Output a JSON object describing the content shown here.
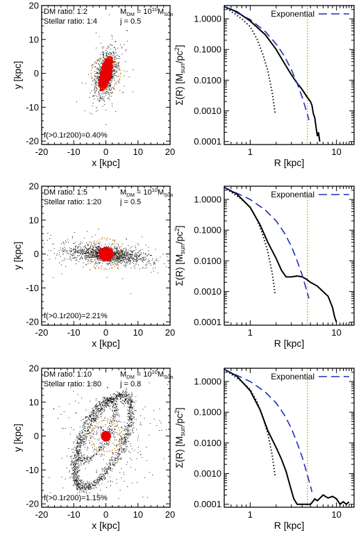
{
  "chart_data": [
    {
      "type": "scatter",
      "title": "",
      "xlabel": "x [kpc]",
      "ylabel": "y [kpc]",
      "xlim": [
        -20,
        20
      ],
      "ylim": [
        -21,
        20
      ],
      "xticks": [
        "-20",
        "-10",
        "0",
        "10",
        "20"
      ],
      "yticks": [
        "-20",
        "-10",
        "0",
        "10",
        "20"
      ],
      "annotations": {
        "dm_ratio": "DM ratio: 1:2",
        "stellar_ratio": "Stellar ratio: 1:4",
        "mass": "M_DM = 10^10 M_Sun",
        "spin": "j = 0.5",
        "fraction": "f(>0.1r200)=0.40%"
      },
      "structure": "compact-bar",
      "tilt_deg": 75,
      "core": {
        "a": 5.2,
        "b": 1.7
      },
      "circle_radius_kpc": 4.6
    },
    {
      "type": "line",
      "title": "",
      "xlabel": "R [kpc]",
      "ylabel": "Σ(R) [M_sun/pc^2]",
      "xscale": "log",
      "yscale": "log",
      "xlim": [
        0.5,
        16
      ],
      "ylim": [
        8e-05,
        2.7
      ],
      "xticks": [
        "1",
        "10"
      ],
      "yticks": [
        "1.0000",
        "0.1000",
        "0.0100",
        "0.0010",
        "0.0001"
      ],
      "legend": {
        "label": "Exponential",
        "placement": "top-right"
      },
      "vline_x": 4.6,
      "series": [
        {
          "role": "profile",
          "style": "solid",
          "color": "#000000",
          "points": [
            [
              0.5,
              2.5
            ],
            [
              0.7,
              1.7
            ],
            [
              1.0,
              0.85
            ],
            [
              1.5,
              0.3
            ],
            [
              2.0,
              0.1
            ],
            [
              2.5,
              0.035
            ],
            [
              3.0,
              0.015
            ],
            [
              3.5,
              0.008
            ],
            [
              4.0,
              0.005
            ],
            [
              4.5,
              0.003
            ],
            [
              5.0,
              0.002
            ],
            [
              5.2,
              0.0015
            ],
            [
              5.4,
              0.0008
            ],
            [
              5.6,
              0.0006
            ],
            [
              5.8,
              0.0003
            ],
            [
              6.0,
              0.00015
            ],
            [
              6.2,
              0.0002
            ],
            [
              6.4,
              0.0001
            ]
          ]
        },
        {
          "role": "exponential",
          "style": "dashed",
          "color": "#1c2fb3",
          "points": [
            [
              0.5,
              2.5
            ],
            [
              1.0,
              0.95
            ],
            [
              1.5,
              0.38
            ],
            [
              2.0,
              0.15
            ],
            [
              2.5,
              0.06
            ],
            [
              3.0,
              0.022
            ],
            [
              3.5,
              0.008
            ],
            [
              4.0,
              0.0028
            ],
            [
              4.5,
              0.00095
            ],
            [
              4.8,
              0.0005
            ]
          ]
        },
        {
          "role": "inner",
          "style": "dotted",
          "color": "#000000",
          "points": [
            [
              0.5,
              2.5
            ],
            [
              0.8,
              1.0
            ],
            [
              1.0,
              0.55
            ],
            [
              1.2,
              0.22
            ],
            [
              1.4,
              0.07
            ],
            [
              1.6,
              0.02
            ],
            [
              1.8,
              0.004
            ],
            [
              1.95,
              0.0008
            ]
          ]
        }
      ]
    },
    {
      "type": "scatter",
      "title": "",
      "xlabel": "x [kpc]",
      "ylabel": "y [kpc]",
      "xlim": [
        -20,
        20
      ],
      "ylim": [
        -21,
        20
      ],
      "xticks": [
        "-20",
        "-10",
        "0",
        "10",
        "20"
      ],
      "yticks": [
        "-20",
        "-10",
        "0",
        "10",
        "20"
      ],
      "annotations": {
        "dm_ratio": "DM ratio: 1:5",
        "stellar_ratio": "Stellar ratio: 1:20",
        "mass": "M_DM = 10^10 M_Sun",
        "spin": "j = 0.5",
        "fraction": "f(>0.1r200)=2.21%"
      },
      "structure": "elongated-bar",
      "tilt_deg": -5,
      "core": {
        "a": 2.2,
        "b": 2.0
      },
      "circle_radius_kpc": 4.6
    },
    {
      "type": "line",
      "title": "",
      "xlabel": "R [kpc]",
      "ylabel": "Σ(R) [M_sun/pc^2]",
      "xscale": "log",
      "yscale": "log",
      "xlim": [
        0.5,
        16
      ],
      "ylim": [
        8e-05,
        2.7
      ],
      "xticks": [
        "1",
        "10"
      ],
      "yticks": [
        "1.0000",
        "0.1000",
        "0.0100",
        "0.0010",
        "0.0001"
      ],
      "legend": {
        "label": "Exponential",
        "placement": "top-right"
      },
      "vline_x": 4.6,
      "series": [
        {
          "role": "profile",
          "style": "solid",
          "color": "#000000",
          "points": [
            [
              0.5,
              2.5
            ],
            [
              0.7,
              1.5
            ],
            [
              1.0,
              0.55
            ],
            [
              1.3,
              0.15
            ],
            [
              1.6,
              0.04
            ],
            [
              2.0,
              0.012
            ],
            [
              2.3,
              0.005
            ],
            [
              2.6,
              0.003
            ],
            [
              3.0,
              0.003
            ],
            [
              3.5,
              0.0032
            ],
            [
              4.0,
              0.003
            ],
            [
              4.5,
              0.0025
            ],
            [
              5.0,
              0.002
            ],
            [
              6.0,
              0.0015
            ],
            [
              7.0,
              0.001
            ],
            [
              8.0,
              0.0007
            ],
            [
              9.0,
              0.0003
            ],
            [
              9.5,
              0.00015
            ],
            [
              10.0,
              0.0001
            ]
          ]
        },
        {
          "role": "exponential",
          "style": "dashed",
          "color": "#1c2fb3",
          "points": [
            [
              0.5,
              2.5
            ],
            [
              1.0,
              1.0
            ],
            [
              1.5,
              0.45
            ],
            [
              2.0,
              0.2
            ],
            [
              2.5,
              0.08
            ],
            [
              3.0,
              0.03
            ],
            [
              3.5,
              0.01
            ],
            [
              4.0,
              0.0035
            ],
            [
              4.5,
              0.0011
            ],
            [
              4.8,
              0.0006
            ]
          ]
        },
        {
          "role": "inner",
          "style": "dotted",
          "color": "#000000",
          "points": [
            [
              0.5,
              2.5
            ],
            [
              0.8,
              1.0
            ],
            [
              1.0,
              0.55
            ],
            [
              1.2,
              0.22
            ],
            [
              1.4,
              0.07
            ],
            [
              1.6,
              0.02
            ],
            [
              1.8,
              0.004
            ],
            [
              1.95,
              0.0008
            ]
          ]
        }
      ]
    },
    {
      "type": "scatter",
      "title": "",
      "xlabel": "x [kpc]",
      "ylabel": "y [kpc]",
      "xlim": [
        -20,
        20
      ],
      "ylim": [
        -21,
        20
      ],
      "xticks": [
        "-20",
        "-10",
        "0",
        "10",
        "20"
      ],
      "yticks": [
        "-20",
        "-10",
        "0",
        "10",
        "20"
      ],
      "annotations": {
        "dm_ratio": "DM ratio: 1:10",
        "stellar_ratio": "Stellar ratio: 1:80",
        "mass": "M_DM = 10^10 M_Sun",
        "spin": "j = 0.8",
        "fraction": "f(>0.1r200)=1.15%"
      },
      "structure": "shell",
      "tilt_deg": 62,
      "core": {
        "a": 1.3,
        "b": 1.3
      },
      "circle_radius_kpc": 4.6
    },
    {
      "type": "line",
      "title": "",
      "xlabel": "R [kpc]",
      "ylabel": "Σ(R) [M_sun/pc^2]",
      "xscale": "log",
      "yscale": "log",
      "xlim": [
        0.5,
        16
      ],
      "ylim": [
        8e-05,
        2.7
      ],
      "xticks": [
        "1",
        "10"
      ],
      "yticks": [
        "1.0000",
        "0.1000",
        "0.0100",
        "0.0010",
        "0.0001"
      ],
      "legend": {
        "label": "Exponential",
        "placement": "top-right"
      },
      "vline_x": 4.6,
      "series": [
        {
          "role": "profile",
          "style": "solid",
          "color": "#000000",
          "points": [
            [
              0.5,
              2.5
            ],
            [
              0.7,
              1.5
            ],
            [
              1.0,
              0.5
            ],
            [
              1.3,
              0.12
            ],
            [
              1.6,
              0.025
            ],
            [
              2.0,
              0.007
            ],
            [
              2.3,
              0.003
            ],
            [
              2.6,
              0.0012
            ],
            [
              2.9,
              0.0004
            ],
            [
              3.2,
              0.00015
            ],
            [
              3.5,
              0.0001
            ],
            [
              4.0,
              0.0001
            ],
            [
              4.5,
              0.0001
            ],
            [
              5.0,
              0.0001
            ],
            [
              5.3,
              0.00012
            ],
            [
              5.6,
              0.00015
            ],
            [
              6.0,
              0.00013
            ],
            [
              7.0,
              0.0002
            ],
            [
              8.0,
              0.00016
            ],
            [
              9.0,
              0.00018
            ],
            [
              10.0,
              0.00015
            ],
            [
              11.0,
              0.0001
            ],
            [
              12.0,
              0.00012
            ],
            [
              13.0,
              0.0001
            ],
            [
              14.0,
              0.00012
            ]
          ]
        },
        {
          "role": "exponential",
          "style": "dashed",
          "color": "#1c2fb3",
          "points": [
            [
              0.5,
              2.5
            ],
            [
              1.0,
              1.0
            ],
            [
              1.5,
              0.45
            ],
            [
              2.0,
              0.2
            ],
            [
              2.5,
              0.08
            ],
            [
              3.0,
              0.03
            ],
            [
              3.5,
              0.01
            ],
            [
              4.0,
              0.0035
            ],
            [
              4.5,
              0.0011
            ],
            [
              5.0,
              0.0004
            ],
            [
              5.2,
              0.00025
            ]
          ]
        },
        {
          "role": "inner",
          "style": "dotted",
          "color": "#000000",
          "points": [
            [
              0.5,
              2.5
            ],
            [
              0.8,
              1.0
            ],
            [
              1.0,
              0.55
            ],
            [
              1.2,
              0.22
            ],
            [
              1.4,
              0.07
            ],
            [
              1.6,
              0.02
            ],
            [
              1.8,
              0.004
            ],
            [
              1.95,
              0.0008
            ]
          ]
        }
      ]
    }
  ],
  "colors": {
    "particles": "#111111",
    "core": "#e60000",
    "circle": "#e8901e",
    "exponential": "#1c2fb3",
    "vline": "#e8901e"
  }
}
